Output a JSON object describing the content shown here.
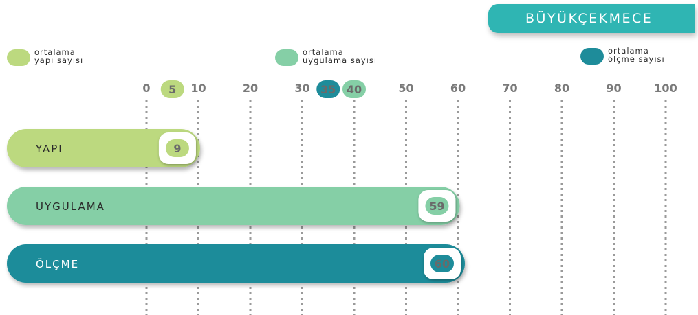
{
  "header": {
    "title": "BÜYÜKÇEKMECE"
  },
  "legend": [
    {
      "line1": "ortalama",
      "line2": "yapı sayısı",
      "color": "#bcd97f"
    },
    {
      "line1": "ortalama",
      "line2": "uygulama sayısı",
      "color": "#85cfa6"
    },
    {
      "line1": "ortalama",
      "line2": "ölçme sayısı",
      "color": "#1e8c9a"
    }
  ],
  "chart_data": {
    "type": "bar",
    "orientation": "horizontal",
    "categories": [
      "YAPI",
      "UYGULAMA",
      "ÖLÇME"
    ],
    "values": [
      9,
      59,
      60
    ],
    "colors": [
      "#bcd97f",
      "#85cfa6",
      "#1e8c9a"
    ],
    "xlim": [
      0,
      100
    ],
    "xticks": [
      0,
      10,
      20,
      30,
      40,
      50,
      60,
      70,
      80,
      90,
      100
    ],
    "reference_markers": [
      {
        "label": "ortalama yapı sayısı",
        "value": 5,
        "color": "#bcd97f"
      },
      {
        "label": "ortalama ölçme sayısı",
        "value": 35,
        "color": "#1e8c9a"
      },
      {
        "label": "ortalama uygulama sayısı",
        "value": 40,
        "color": "#85cfa6"
      }
    ],
    "grid": "vertical dotted lines at ticks",
    "title": "",
    "xlabel": "",
    "ylabel": ""
  }
}
